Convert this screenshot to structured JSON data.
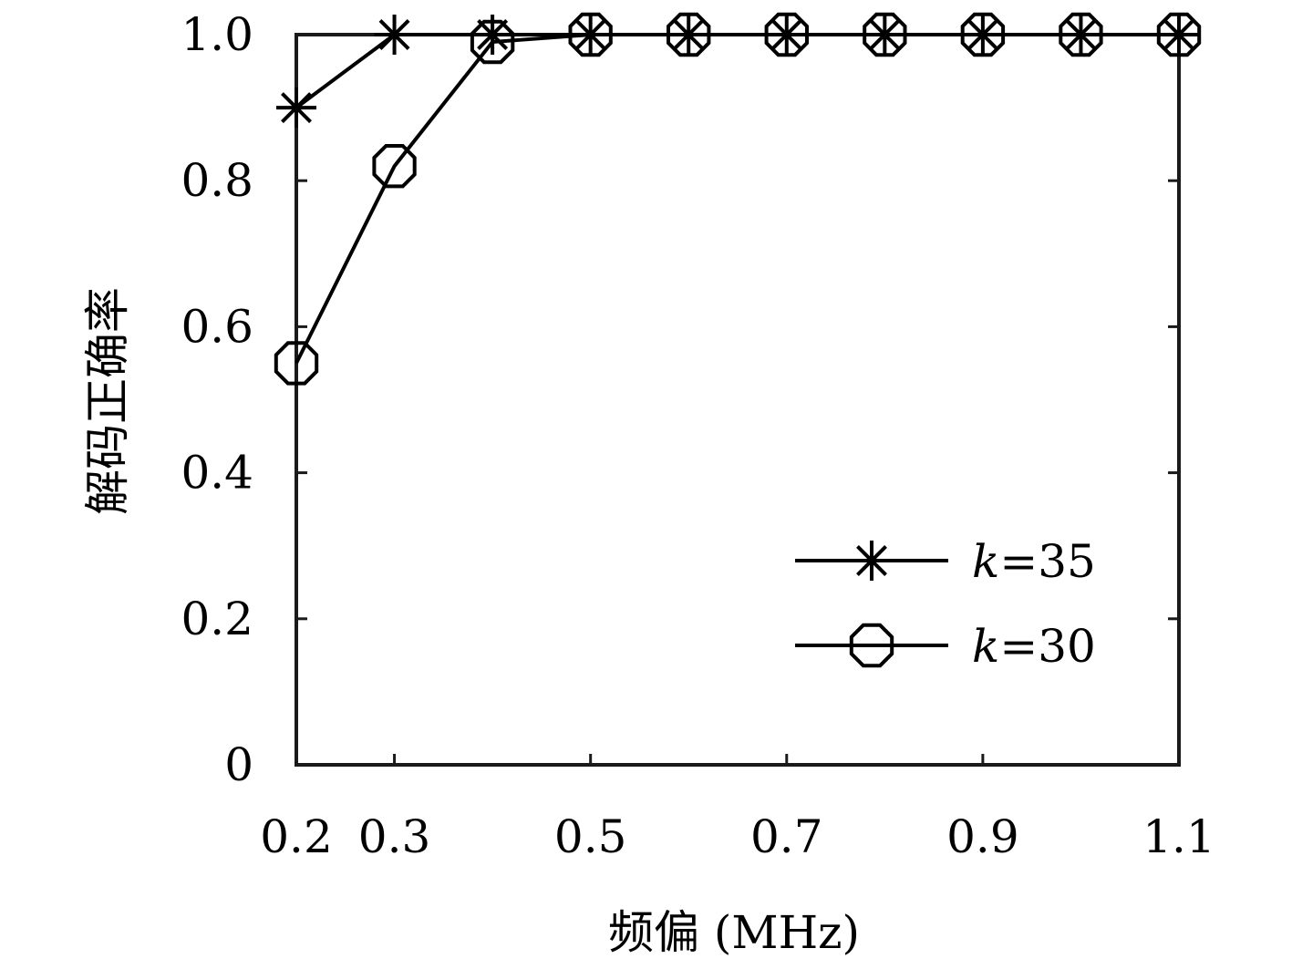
{
  "chart_data": {
    "type": "line",
    "xlabel": "频偏 (MHz)",
    "ylabel": "解码正确率",
    "x": [
      0.2,
      0.3,
      0.4,
      0.5,
      0.6,
      0.7,
      0.8,
      0.9,
      1.0,
      1.1
    ],
    "x_tick_labels": [
      "0.2",
      "0.3",
      "0.5",
      "0.7",
      "0.9",
      "1.1"
    ],
    "y_tick_labels": [
      "0",
      "0.2",
      "0.4",
      "0.6",
      "0.8",
      "1.0"
    ],
    "xlim": [
      0.2,
      1.1
    ],
    "ylim": [
      0,
      1.0
    ],
    "grid": false,
    "legend_position": "bottom-right",
    "series": [
      {
        "k": "k",
        "eq": "=",
        "num": "35",
        "marker": "asterisk",
        "values": [
          0.9,
          1.0,
          1.0,
          1.0,
          1.0,
          1.0,
          1.0,
          1.0,
          1.0,
          1.0
        ]
      },
      {
        "k": "k",
        "eq": "=",
        "num": "30",
        "marker": "octagon",
        "values": [
          0.55,
          0.82,
          0.99,
          1.0,
          1.0,
          1.0,
          1.0,
          1.0,
          1.0,
          1.0
        ]
      }
    ],
    "line_color": "#000000"
  }
}
